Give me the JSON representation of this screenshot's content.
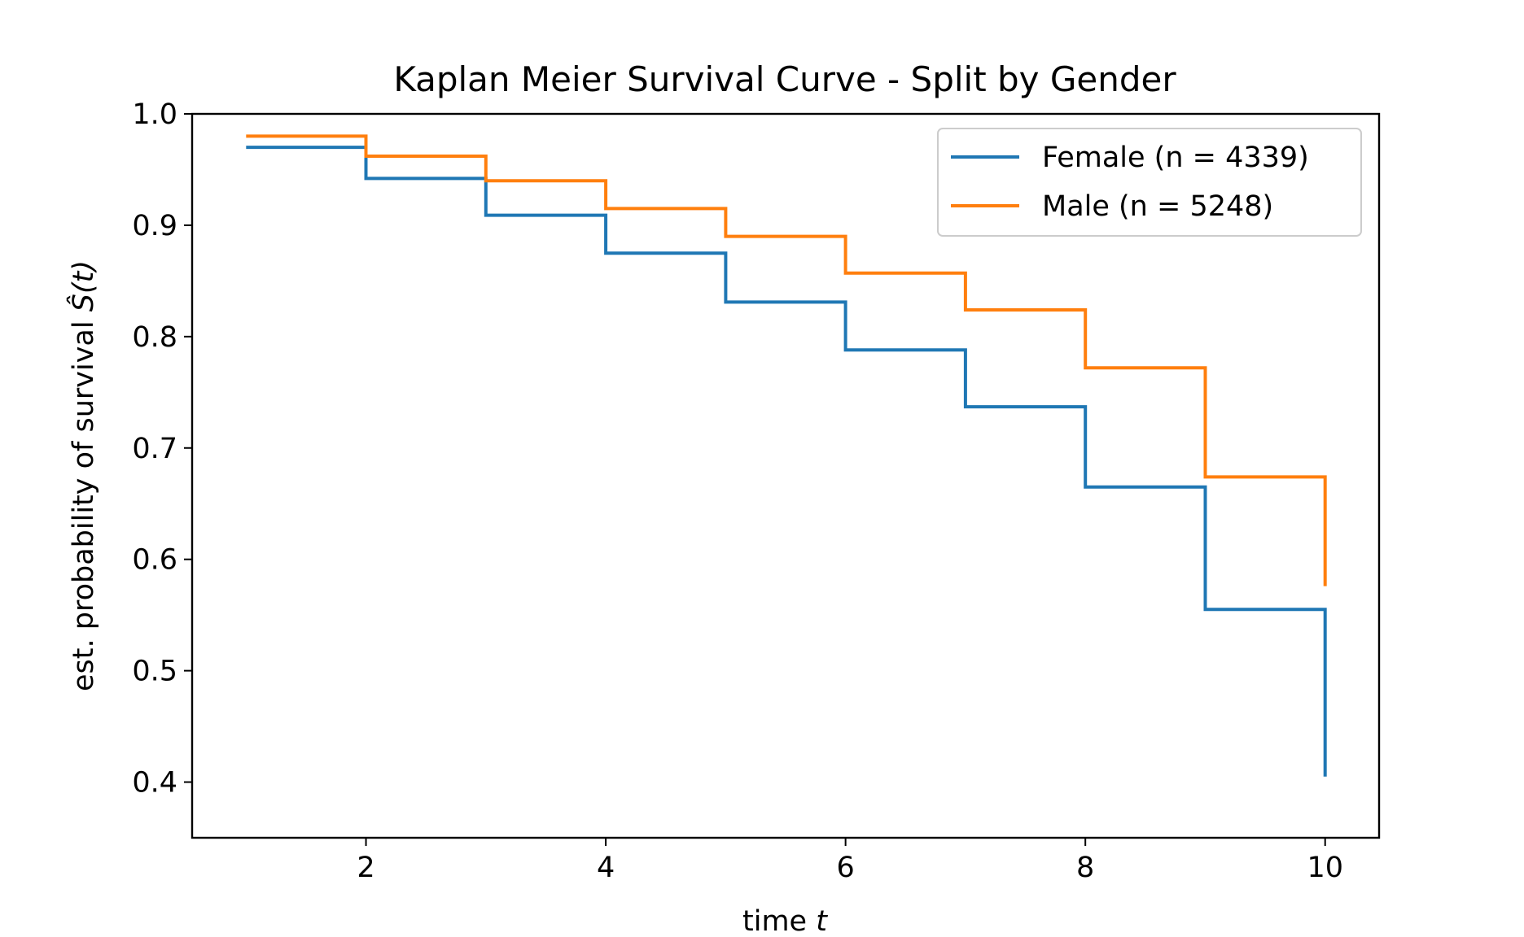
{
  "chart_data": {
    "type": "line",
    "step": "post",
    "title": "Kaplan Meier Survival Curve - Split by Gender",
    "xlabel": "time",
    "xlabel_var": "t",
    "ylabel": "est. probability of survival",
    "ylabel_symbol": "Ŝ(t)",
    "xlim": [
      0.55,
      10.45
    ],
    "ylim": [
      0.35,
      1.0
    ],
    "xticks": [
      2,
      4,
      6,
      8,
      10
    ],
    "xtick_labels": [
      "2",
      "4",
      "6",
      "8",
      "10"
    ],
    "yticks": [
      0.4,
      0.5,
      0.6,
      0.7,
      0.8,
      0.9,
      1.0
    ],
    "ytick_labels": [
      "0.4",
      "0.5",
      "0.6",
      "0.7",
      "0.8",
      "0.9",
      "1.0"
    ],
    "grid": false,
    "legend_position": "top-right",
    "series": [
      {
        "name": "Female (n = 4339)",
        "color": "#1f77b4",
        "x": [
          1,
          2,
          3,
          4,
          5,
          6,
          7,
          8,
          9,
          10
        ],
        "y": [
          0.97,
          0.942,
          0.909,
          0.875,
          0.831,
          0.788,
          0.737,
          0.665,
          0.555,
          0.405
        ]
      },
      {
        "name": "Male (n = 5248)",
        "color": "#ff7f0e",
        "x": [
          1,
          2,
          3,
          4,
          5,
          6,
          7,
          8,
          9,
          10
        ],
        "y": [
          0.98,
          0.962,
          0.94,
          0.915,
          0.89,
          0.857,
          0.824,
          0.772,
          0.674,
          0.576
        ]
      }
    ]
  }
}
